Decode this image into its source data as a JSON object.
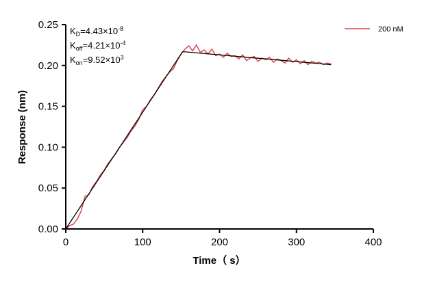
{
  "chart_data": {
    "type": "line",
    "xlabel": "Time（ s）",
    "ylabel": "Response (nm)",
    "xlim": [
      0,
      400
    ],
    "ylim": [
      0,
      0.25
    ],
    "xticks": [
      "0",
      "100",
      "200",
      "300",
      "400"
    ],
    "yticks": [
      "0.00",
      "0.05",
      "0.10",
      "0.15",
      "0.20",
      "0.25"
    ],
    "grid": false,
    "legend_position": "top-right",
    "annotations": {
      "kd": {
        "base": "K",
        "sub": "D",
        "eq": "=4.43×10",
        "sup": "-8"
      },
      "koff": {
        "base": "K",
        "sub": "off",
        "eq": "=4.21×10",
        "sup": "-4"
      },
      "kon": {
        "base": "K",
        "sub": "on",
        "eq": "=9.52×10",
        "sup": "3"
      }
    },
    "series": [
      {
        "name": "200 nM",
        "color": "#e0454b",
        "x": [
          0,
          5,
          10,
          15,
          20,
          25,
          30,
          35,
          40,
          45,
          50,
          55,
          60,
          65,
          70,
          75,
          80,
          85,
          90,
          95,
          100,
          105,
          110,
          115,
          120,
          125,
          130,
          135,
          140,
          145,
          150,
          155,
          160,
          165,
          170,
          175,
          180,
          185,
          190,
          195,
          200,
          205,
          210,
          215,
          220,
          225,
          230,
          235,
          240,
          245,
          250,
          255,
          260,
          265,
          270,
          275,
          280,
          285,
          290,
          295,
          300,
          305,
          310,
          315,
          320,
          325,
          330,
          335,
          340,
          345
        ],
        "y": [
          0.0,
          0.004,
          0.006,
          0.012,
          0.022,
          0.04,
          0.042,
          0.052,
          0.058,
          0.066,
          0.072,
          0.08,
          0.086,
          0.092,
          0.1,
          0.106,
          0.112,
          0.12,
          0.126,
          0.134,
          0.146,
          0.15,
          0.158,
          0.164,
          0.172,
          0.18,
          0.186,
          0.192,
          0.196,
          0.206,
          0.214,
          0.22,
          0.224,
          0.218,
          0.225,
          0.216,
          0.219,
          0.214,
          0.22,
          0.212,
          0.214,
          0.21,
          0.215,
          0.211,
          0.212,
          0.208,
          0.213,
          0.206,
          0.209,
          0.211,
          0.205,
          0.209,
          0.207,
          0.21,
          0.204,
          0.208,
          0.206,
          0.203,
          0.209,
          0.204,
          0.207,
          0.202,
          0.206,
          0.201,
          0.205,
          0.203,
          0.204,
          0.201,
          0.203,
          0.202
        ]
      },
      {
        "color": "#000000",
        "x": [
          0,
          152,
          345
        ],
        "y": [
          0.0,
          0.217,
          0.201
        ]
      }
    ]
  }
}
